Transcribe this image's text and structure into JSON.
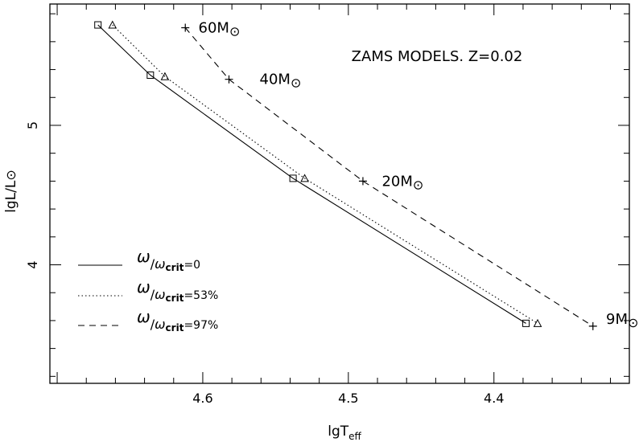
{
  "chart_data": {
    "type": "line",
    "title": "ZAMS MODELS. Z=0.02",
    "xlabel": "lgT",
    "xlabel_sub": "eff",
    "ylabel": "lgL/L",
    "ylabel_symbol": "⊙",
    "xlim": [
      4.705,
      4.307
    ],
    "ylim": [
      3.15,
      5.87
    ],
    "x_reversed": true,
    "xticks": [
      4.6,
      4.5,
      4.4
    ],
    "yticks": [
      4,
      5
    ],
    "xtick_labels": [
      "4.6",
      "4.5",
      "4.4"
    ],
    "ytick_labels": [
      "4",
      "5"
    ],
    "grid": false,
    "legend_position": "bottom-left",
    "series": [
      {
        "name": "ω/ωcrit=0",
        "legend_symbol": "ω",
        "legend_sub": "crit",
        "legend_value": "=0",
        "style": "solid",
        "marker": "square",
        "x": [
          4.672,
          4.636,
          4.538,
          4.378
        ],
        "y": [
          5.72,
          5.36,
          4.62,
          3.58
        ]
      },
      {
        "name": "ω/ωcrit=53%",
        "legend_symbol": "ω",
        "legend_sub": "crit",
        "legend_value": "=53%",
        "style": "dotted",
        "marker": "triangle",
        "x": [
          4.662,
          4.626,
          4.53,
          4.37
        ],
        "y": [
          5.72,
          5.35,
          4.62,
          3.58
        ]
      },
      {
        "name": "ω/ωcrit=97%",
        "legend_symbol": "ω",
        "legend_sub": "crit",
        "legend_value": "=97%",
        "style": "dashed",
        "marker": "plus",
        "x": [
          4.612,
          4.582,
          4.49,
          4.332
        ],
        "y": [
          5.7,
          5.33,
          4.6,
          3.56
        ]
      }
    ],
    "annotations": [
      {
        "text": "60M",
        "symbol": "⊙",
        "x": 4.603,
        "y": 5.7
      },
      {
        "text": "40M",
        "symbol": "⊙",
        "x": 4.561,
        "y": 5.33
      },
      {
        "text": "20M",
        "symbol": "⊙",
        "x": 4.477,
        "y": 4.6
      },
      {
        "text": "9M",
        "symbol": "⊙",
        "x": 4.323,
        "y": 3.61
      }
    ]
  }
}
